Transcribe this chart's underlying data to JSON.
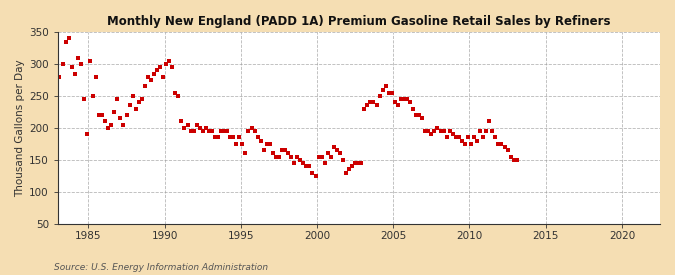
{
  "title": "Monthly New England (PADD 1A) Premium Gasoline Retail Sales by Refiners",
  "ylabel": "Thousand Gallons per Day",
  "source": "Source: U.S. Energy Information Administration",
  "background_color": "#f5deb3",
  "plot_background_color": "#ffffff",
  "dot_color": "#cc0000",
  "grid_color": "#999999",
  "xlim": [
    1983.0,
    2022.5
  ],
  "ylim": [
    50,
    350
  ],
  "yticks": [
    50,
    100,
    150,
    200,
    250,
    300,
    350
  ],
  "xticks": [
    1985,
    1990,
    1995,
    2000,
    2005,
    2010,
    2015,
    2020
  ],
  "data": [
    [
      1983.1,
      280
    ],
    [
      1983.3,
      300
    ],
    [
      1983.5,
      335
    ],
    [
      1983.7,
      340
    ],
    [
      1983.9,
      295
    ],
    [
      1984.1,
      285
    ],
    [
      1984.3,
      310
    ],
    [
      1984.5,
      300
    ],
    [
      1984.7,
      245
    ],
    [
      1984.9,
      190
    ],
    [
      1985.1,
      305
    ],
    [
      1985.3,
      250
    ],
    [
      1985.5,
      280
    ],
    [
      1985.7,
      220
    ],
    [
      1985.9,
      220
    ],
    [
      1986.1,
      210
    ],
    [
      1986.3,
      200
    ],
    [
      1986.5,
      205
    ],
    [
      1986.7,
      225
    ],
    [
      1986.9,
      245
    ],
    [
      1987.1,
      215
    ],
    [
      1987.3,
      205
    ],
    [
      1987.5,
      220
    ],
    [
      1987.7,
      235
    ],
    [
      1987.9,
      250
    ],
    [
      1988.1,
      230
    ],
    [
      1988.3,
      240
    ],
    [
      1988.5,
      245
    ],
    [
      1988.7,
      265
    ],
    [
      1988.9,
      280
    ],
    [
      1989.1,
      275
    ],
    [
      1989.3,
      285
    ],
    [
      1989.5,
      290
    ],
    [
      1989.7,
      295
    ],
    [
      1989.9,
      280
    ],
    [
      1990.1,
      300
    ],
    [
      1990.3,
      305
    ],
    [
      1990.5,
      295
    ],
    [
      1990.7,
      255
    ],
    [
      1990.9,
      250
    ],
    [
      1991.1,
      210
    ],
    [
      1991.3,
      200
    ],
    [
      1991.5,
      205
    ],
    [
      1991.7,
      195
    ],
    [
      1991.9,
      195
    ],
    [
      1992.1,
      205
    ],
    [
      1992.3,
      200
    ],
    [
      1992.5,
      195
    ],
    [
      1992.7,
      200
    ],
    [
      1992.9,
      195
    ],
    [
      1993.1,
      195
    ],
    [
      1993.3,
      185
    ],
    [
      1993.5,
      185
    ],
    [
      1993.7,
      195
    ],
    [
      1993.9,
      195
    ],
    [
      1994.1,
      195
    ],
    [
      1994.3,
      185
    ],
    [
      1994.5,
      185
    ],
    [
      1994.7,
      175
    ],
    [
      1994.9,
      185
    ],
    [
      1995.1,
      175
    ],
    [
      1995.3,
      160
    ],
    [
      1995.5,
      195
    ],
    [
      1995.7,
      200
    ],
    [
      1995.9,
      195
    ],
    [
      1996.1,
      185
    ],
    [
      1996.3,
      180
    ],
    [
      1996.5,
      165
    ],
    [
      1996.7,
      175
    ],
    [
      1996.9,
      175
    ],
    [
      1997.1,
      160
    ],
    [
      1997.3,
      155
    ],
    [
      1997.5,
      155
    ],
    [
      1997.7,
      165
    ],
    [
      1997.9,
      165
    ],
    [
      1998.1,
      160
    ],
    [
      1998.3,
      155
    ],
    [
      1998.5,
      145
    ],
    [
      1998.7,
      155
    ],
    [
      1998.9,
      150
    ],
    [
      1999.1,
      145
    ],
    [
      1999.3,
      140
    ],
    [
      1999.5,
      140
    ],
    [
      1999.7,
      130
    ],
    [
      1999.9,
      125
    ],
    [
      2000.1,
      155
    ],
    [
      2000.3,
      155
    ],
    [
      2000.5,
      145
    ],
    [
      2000.7,
      160
    ],
    [
      2000.9,
      155
    ],
    [
      2001.1,
      170
    ],
    [
      2001.3,
      165
    ],
    [
      2001.5,
      160
    ],
    [
      2001.7,
      150
    ],
    [
      2001.9,
      130
    ],
    [
      2002.1,
      135
    ],
    [
      2002.3,
      140
    ],
    [
      2002.5,
      145
    ],
    [
      2002.7,
      145
    ],
    [
      2002.9,
      145
    ],
    [
      2003.1,
      230
    ],
    [
      2003.3,
      235
    ],
    [
      2003.5,
      240
    ],
    [
      2003.7,
      240
    ],
    [
      2003.9,
      235
    ],
    [
      2004.1,
      250
    ],
    [
      2004.3,
      260
    ],
    [
      2004.5,
      265
    ],
    [
      2004.7,
      255
    ],
    [
      2004.9,
      255
    ],
    [
      2005.1,
      240
    ],
    [
      2005.3,
      235
    ],
    [
      2005.5,
      245
    ],
    [
      2005.7,
      245
    ],
    [
      2005.9,
      245
    ],
    [
      2006.1,
      240
    ],
    [
      2006.3,
      230
    ],
    [
      2006.5,
      220
    ],
    [
      2006.7,
      220
    ],
    [
      2006.9,
      215
    ],
    [
      2007.1,
      195
    ],
    [
      2007.3,
      195
    ],
    [
      2007.5,
      190
    ],
    [
      2007.7,
      195
    ],
    [
      2007.9,
      200
    ],
    [
      2008.1,
      195
    ],
    [
      2008.3,
      195
    ],
    [
      2008.5,
      185
    ],
    [
      2008.7,
      195
    ],
    [
      2008.9,
      190
    ],
    [
      2009.1,
      185
    ],
    [
      2009.3,
      185
    ],
    [
      2009.5,
      180
    ],
    [
      2009.7,
      175
    ],
    [
      2009.9,
      185
    ],
    [
      2010.1,
      175
    ],
    [
      2010.3,
      185
    ],
    [
      2010.5,
      180
    ],
    [
      2010.7,
      195
    ],
    [
      2010.9,
      185
    ],
    [
      2011.1,
      195
    ],
    [
      2011.3,
      210
    ],
    [
      2011.5,
      195
    ],
    [
      2011.7,
      185
    ],
    [
      2011.9,
      175
    ],
    [
      2012.1,
      175
    ],
    [
      2012.3,
      170
    ],
    [
      2012.5,
      165
    ],
    [
      2012.7,
      155
    ],
    [
      2012.9,
      150
    ],
    [
      2013.1,
      150
    ]
  ]
}
